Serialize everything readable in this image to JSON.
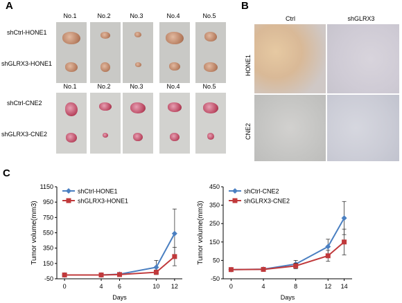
{
  "panels": {
    "a": "A",
    "b": "B",
    "c": "C"
  },
  "panel_a": {
    "top_columns": [
      "No.1",
      "No.2",
      "No.3",
      "No.4",
      "No.5"
    ],
    "top_rows": [
      "shCtrl-HONE1",
      "shGLRX3-HONE1"
    ],
    "bottom_columns": [
      "No.1",
      "No.2",
      "No.3",
      "No.4",
      "No.5"
    ],
    "bottom_rows": [
      "shCtrl-CNE2",
      "shGLRX3-CNE2"
    ]
  },
  "panel_b": {
    "columns": [
      "Ctrl",
      "shGLRX3"
    ],
    "rows": [
      "HONE1",
      "CNE2"
    ]
  },
  "chart_data": [
    {
      "type": "line",
      "xlabel": "Days",
      "ylabel": "Tumor volume(mm3)",
      "x": [
        0,
        4,
        6,
        10,
        12
      ],
      "xticks": [
        "0",
        "4",
        "6",
        "10",
        "12"
      ],
      "ylim": [
        -50,
        1150
      ],
      "yticks": [
        -50,
        150,
        350,
        550,
        750,
        950,
        1150
      ],
      "legend_position": "top-left",
      "series": [
        {
          "name": "shCtrl-HONE1",
          "color": "#4a7fc1",
          "marker": "diamond",
          "values": [
            0,
            0,
            10,
            100,
            540
          ],
          "errors": [
            0,
            0,
            10,
            90,
            320
          ]
        },
        {
          "name": "shGLRX3-HONE1",
          "color": "#c0393b",
          "marker": "square",
          "values": [
            0,
            0,
            5,
            35,
            240
          ],
          "errors": [
            0,
            0,
            5,
            30,
            120
          ]
        }
      ]
    },
    {
      "type": "line",
      "xlabel": "Days",
      "ylabel": "Tumor volume(mm3)",
      "x": [
        0,
        4,
        8,
        12,
        14
      ],
      "xticks": [
        "0",
        "4",
        "8",
        "12",
        "14"
      ],
      "ylim": [
        -50,
        450
      ],
      "yticks": [
        -50,
        50,
        150,
        250,
        350,
        450
      ],
      "legend_position": "top-left",
      "series": [
        {
          "name": "shCtrl-CNE2",
          "color": "#4a7fc1",
          "marker": "diamond",
          "values": [
            0,
            2,
            30,
            125,
            280
          ],
          "errors": [
            0,
            2,
            20,
            40,
            90
          ]
        },
        {
          "name": "shGLRX3-CNE2",
          "color": "#c0393b",
          "marker": "square",
          "values": [
            0,
            1,
            20,
            75,
            150
          ],
          "errors": [
            0,
            1,
            15,
            30,
            70
          ]
        }
      ]
    }
  ]
}
